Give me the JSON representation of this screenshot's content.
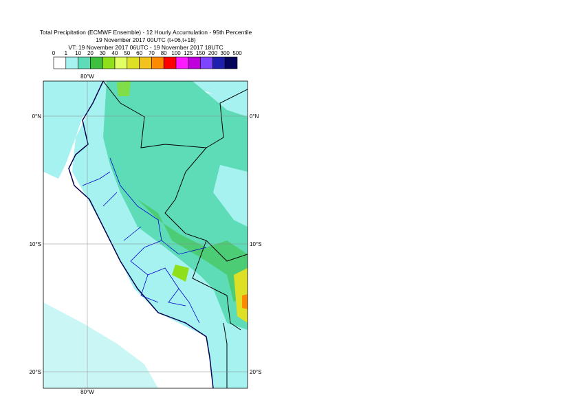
{
  "title": [
    "Total Precipitation (ECMWF Ensemble) - 12 Hourly Accumulation - 95th Percentile",
    "19 November 2017 00UTC (t+06,t+18)",
    "VT: 19 November 2017 06UTC - 19 November 2017 18UTC"
  ],
  "legend": {
    "levels": [
      0,
      1,
      10,
      20,
      30,
      40,
      50,
      60,
      70,
      80,
      100,
      125,
      150,
      200,
      300,
      500
    ],
    "colors": [
      "#ffffff",
      "#a6f2f0",
      "#5edcb8",
      "#3fbf3f",
      "#8fe01a",
      "#e2ff66",
      "#dde025",
      "#f2c21f",
      "#ff8a00",
      "#ff0000",
      "#ff1aff",
      "#c000dc",
      "#7d45ff",
      "#1f1fae",
      "#04045a"
    ]
  },
  "map": {
    "lon_labels": [
      "80°W",
      "80°W"
    ],
    "lat_labels": [
      "0°N",
      "0°N",
      "10°S",
      "10°S",
      "20°S",
      "20°S"
    ]
  }
}
